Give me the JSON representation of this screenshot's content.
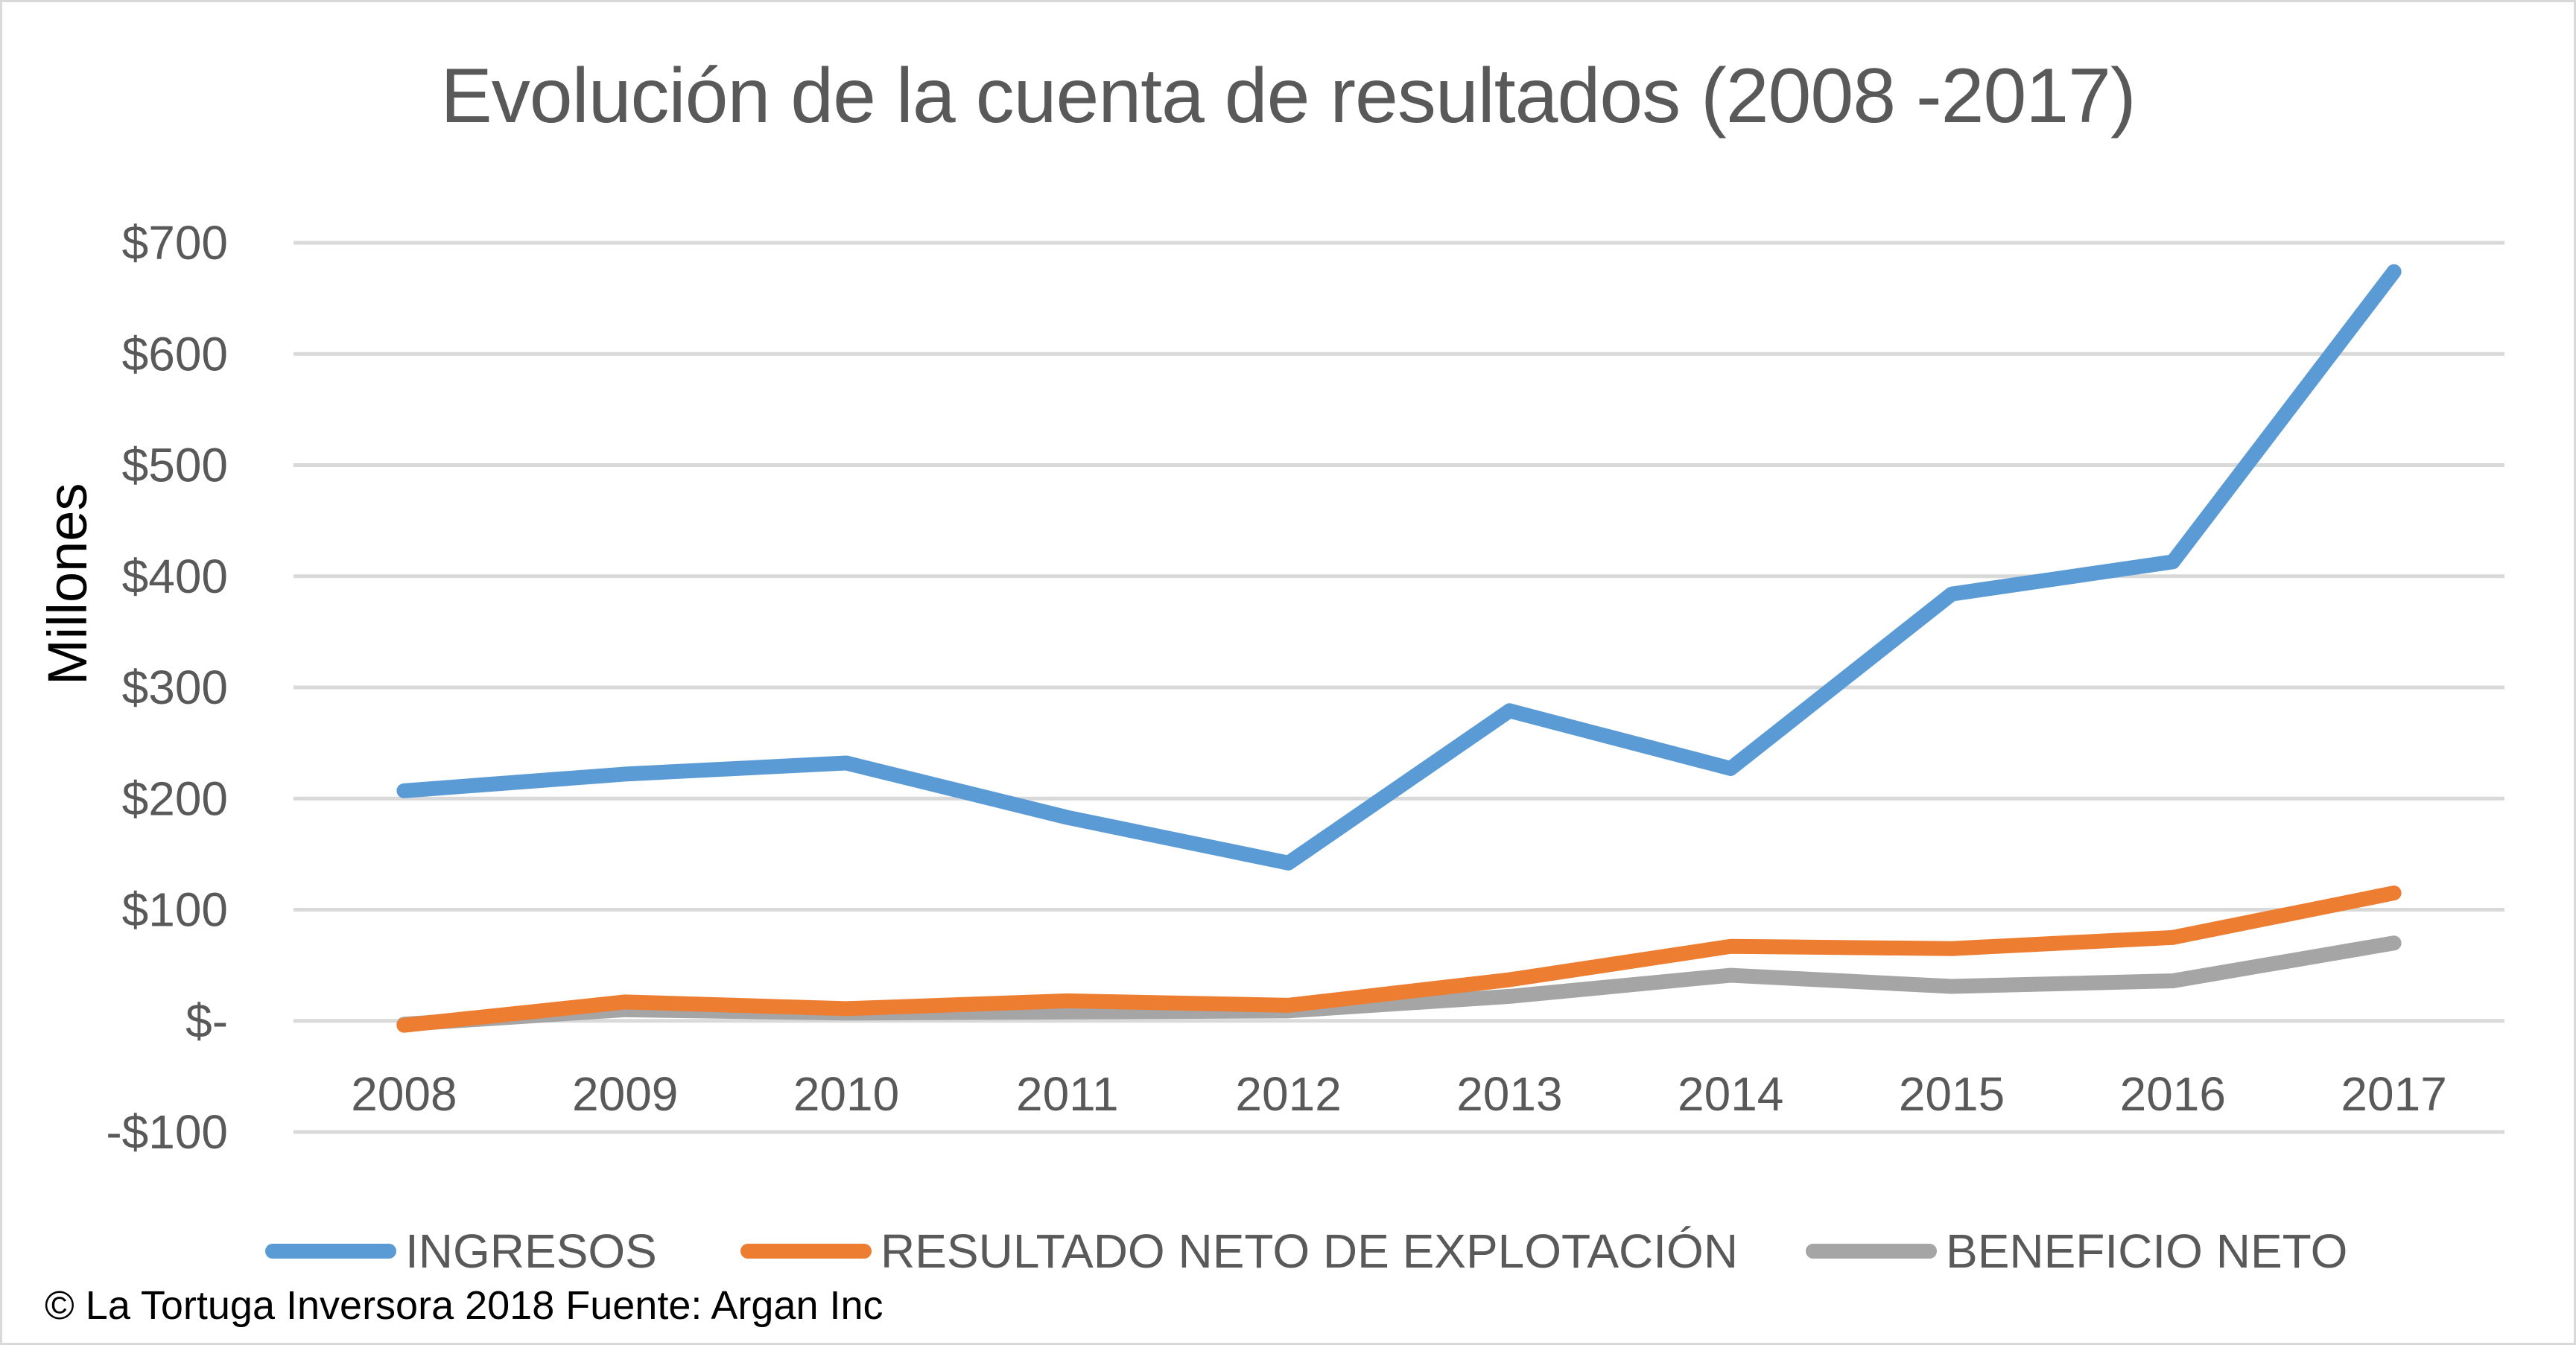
{
  "chart_data": {
    "type": "line",
    "title": "Evolución de la cuenta de resultados (2008 -2017)",
    "xlabel": "",
    "ylabel": "Millones",
    "ylim": [
      -100,
      700
    ],
    "yticks": [
      -100,
      0,
      100,
      200,
      300,
      400,
      500,
      600,
      700
    ],
    "ytick_labels": [
      "-$100",
      "$-",
      "$100",
      "$200",
      "$300",
      "$400",
      "$500",
      "$600",
      "$700"
    ],
    "categories": [
      "2008",
      "2009",
      "2010",
      "2011",
      "2012",
      "2013",
      "2014",
      "2015",
      "2016",
      "2017"
    ],
    "grid": true,
    "legend_position": "bottom",
    "series": [
      {
        "name": "INGRESOS",
        "color": "#5b9bd5",
        "values": [
          207,
          222,
          232,
          183,
          142,
          279,
          227,
          384,
          413,
          674
        ]
      },
      {
        "name": "RESULTADO NETO DE EXPLOTACIÓN",
        "color": "#ed7d31",
        "values": [
          -4,
          17,
          11,
          18,
          14,
          37,
          67,
          65,
          75,
          115
        ]
      },
      {
        "name": "BENEFICIO NETO",
        "color": "#a5a5a5",
        "values": [
          -3,
          10,
          7,
          8,
          9,
          22,
          41,
          31,
          36,
          70
        ]
      }
    ]
  },
  "footer": "© La Tortuga Inversora 2018 Fuente: Argan Inc"
}
